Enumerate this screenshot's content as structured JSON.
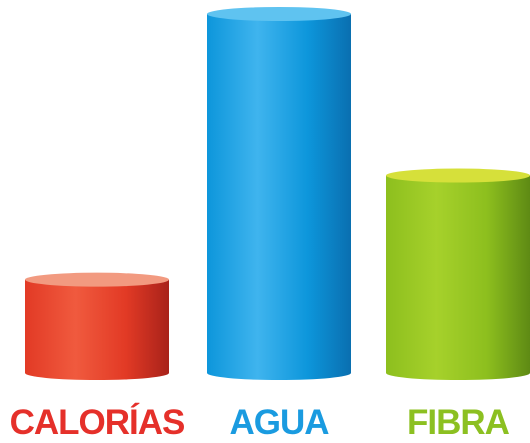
{
  "chart_data": {
    "type": "bar",
    "categories": [
      "CALORÍAS",
      "AGUA",
      "FIBRA"
    ],
    "values": [
      26,
      100,
      55
    ],
    "title": "",
    "xlabel": "",
    "ylabel": "",
    "ylim": [
      0,
      100
    ],
    "grid": false,
    "legend": "none",
    "style": "3d-cylinder",
    "colors": [
      {
        "body_dark": "#a8221a",
        "body_main": "#e23a25",
        "body_light": "#f05a3e",
        "top": "#f29a80",
        "label": "#e5302a"
      },
      {
        "body_dark": "#0a6fb0",
        "body_main": "#0d96db",
        "body_light": "#3fb4ee",
        "top": "#5fc3f0",
        "label": "#1a9be0"
      },
      {
        "body_dark": "#5e8a14",
        "body_main": "#8dbf1e",
        "body_light": "#a6d12b",
        "top": "#d6e03a",
        "label": "#8cc021"
      }
    ]
  }
}
